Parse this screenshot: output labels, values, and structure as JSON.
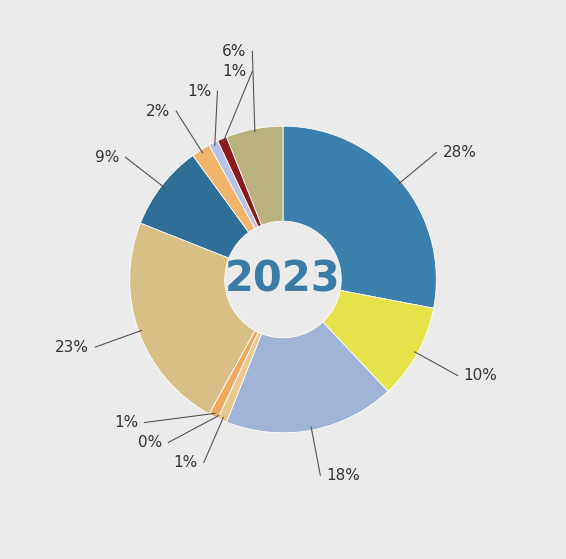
{
  "chart_data": {
    "type": "pie",
    "title": "2023",
    "values": [
      28,
      10,
      18,
      1,
      0,
      1,
      23,
      9,
      2,
      1,
      1,
      6
    ],
    "value_labels": [
      "28%",
      "10%",
      "18%",
      "1%",
      "0%",
      "1%",
      "23%",
      "9%",
      "2%",
      "1%",
      "1%",
      "6%"
    ],
    "colors": [
      "#3b7fad",
      "#e6e34a",
      "#9fb4d6",
      "#e8c98f",
      "#7a9a3a",
      "#f0a860",
      "#d8bf85",
      "#2f6f97",
      "#f2b36b",
      "#b9c3e6",
      "#8b1a1a",
      "#b9b27f"
    ],
    "data_labels": true
  }
}
